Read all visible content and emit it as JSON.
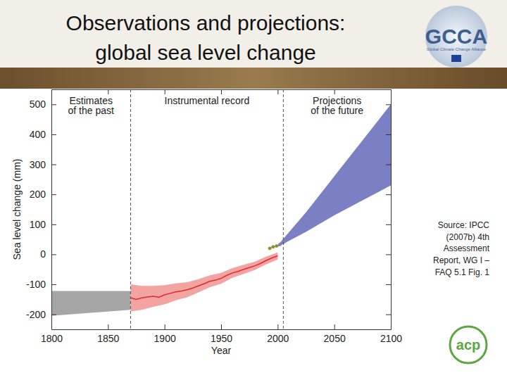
{
  "chart_data": {
    "type": "line",
    "x_label": "Year",
    "y_label": "Sea level change (mm)",
    "xlim": [
      1800,
      2100
    ],
    "xticks": [
      1800,
      1850,
      1900,
      1950,
      2000,
      2050,
      2100
    ],
    "ylim": [
      -250,
      550
    ],
    "yticks": [
      -200,
      -100,
      0,
      100,
      200,
      300,
      400,
      500
    ],
    "regions": [
      {
        "label": [
          "Estimates",
          "of the past"
        ],
        "x": [
          1800,
          1870
        ]
      },
      {
        "label": [
          "Instrumental record"
        ],
        "x": [
          1870,
          2005
        ]
      },
      {
        "label": [
          "Projections",
          "of the future"
        ],
        "x": [
          2005,
          2100
        ]
      }
    ],
    "series": [
      {
        "type": "area",
        "color": "#a6a6a6",
        "x": [
          1800,
          1870
        ],
        "upper": [
          -122,
          -122
        ],
        "lower": [
          -205,
          -185
        ]
      },
      {
        "type": "area",
        "color": "#f4a3a3",
        "x": [
          1870,
          1880,
          1890,
          1900,
          1910,
          1920,
          1930,
          1940,
          1950,
          1960,
          1970,
          1980,
          1990,
          2000
        ],
        "upper": [
          -100,
          -105,
          -105,
          -103,
          -97,
          -93,
          -83,
          -70,
          -62,
          -46,
          -35,
          -24,
          -7,
          7
        ],
        "lower": [
          -190,
          -185,
          -175,
          -167,
          -153,
          -143,
          -127,
          -110,
          -98,
          -78,
          -65,
          -52,
          -33,
          -17
        ]
      },
      {
        "type": "line",
        "color": "#dd2b2b",
        "x": [
          1870,
          1875,
          1880,
          1885,
          1890,
          1895,
          1900,
          1905,
          1910,
          1915,
          1920,
          1925,
          1930,
          1935,
          1940,
          1945,
          1950,
          1955,
          1960,
          1965,
          1970,
          1975,
          1980,
          1985,
          1990,
          1995,
          2000
        ],
        "values": [
          -145,
          -150,
          -145,
          -142,
          -140,
          -143,
          -135,
          -130,
          -125,
          -122,
          -118,
          -112,
          -105,
          -98,
          -90,
          -86,
          -80,
          -70,
          -62,
          -57,
          -50,
          -44,
          -38,
          -30,
          -20,
          -12,
          -5
        ]
      },
      {
        "type": "line",
        "color": "#6b9a3c",
        "marker": "circle",
        "x": [
          1993,
          1996,
          1999,
          2002,
          2005
        ],
        "values": [
          20,
          25,
          28,
          33,
          40
        ]
      },
      {
        "type": "area",
        "color": "#7b7fc4",
        "x": [
          2000,
          2025,
          2050,
          2075,
          2100
        ],
        "upper": [
          30,
          140,
          260,
          380,
          500
        ],
        "lower": [
          25,
          75,
          130,
          180,
          230
        ]
      }
    ]
  },
  "slide": {
    "title": [
      "Observations and projections:",
      "global sea level change"
    ],
    "logo": {
      "text": "GCCA",
      "subtitle": "Global Climate Change Alliance"
    },
    "logo2": "acp",
    "source": [
      "Source: IPCC",
      "(2007b) 4th",
      "Assessment",
      "Report, WG I –",
      "FAQ 5.1 Fig. 1"
    ]
  }
}
